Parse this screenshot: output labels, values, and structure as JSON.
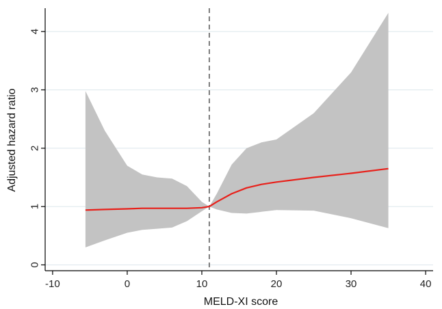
{
  "chart_data": {
    "type": "line",
    "title": "",
    "xlabel": "MELD-XI score",
    "ylabel": "Adjusted hazard ratio",
    "xlim": [
      -11,
      41
    ],
    "ylim": [
      -0.1,
      4.4
    ],
    "xticks": [
      -10,
      0,
      10,
      20,
      30,
      40
    ],
    "xtick_labels": [
      "-10",
      "0",
      "10",
      "20",
      "30",
      "40"
    ],
    "yticks": [
      0,
      1,
      2,
      3,
      4
    ],
    "ytick_labels": [
      "0",
      "1",
      "2",
      "3",
      "4"
    ],
    "grid": "horizontal",
    "reference_line_x": 11,
    "colors": {
      "line": "#e8201a",
      "band": "#c3c3c3",
      "grid": "#dce6ec",
      "axis": "#000000",
      "reference": "#444444"
    },
    "series": [
      {
        "x": [
          -5.6,
          -3,
          0,
          2,
          4,
          6,
          8,
          10,
          11,
          12,
          14,
          16,
          18,
          20,
          25,
          30,
          35
        ],
        "y": [
          0.94,
          0.95,
          0.96,
          0.97,
          0.97,
          0.97,
          0.97,
          0.98,
          1.0,
          1.08,
          1.22,
          1.32,
          1.38,
          1.42,
          1.5,
          1.57,
          1.65
        ],
        "lower": [
          0.3,
          0.42,
          0.55,
          0.6,
          0.62,
          0.64,
          0.75,
          0.92,
          1.0,
          0.95,
          0.89,
          0.88,
          0.91,
          0.94,
          0.93,
          0.8,
          0.63
        ],
        "upper": [
          2.98,
          2.3,
          1.7,
          1.55,
          1.5,
          1.48,
          1.35,
          1.08,
          1.0,
          1.22,
          1.72,
          2.0,
          2.1,
          2.15,
          2.6,
          3.3,
          4.32
        ]
      }
    ]
  }
}
